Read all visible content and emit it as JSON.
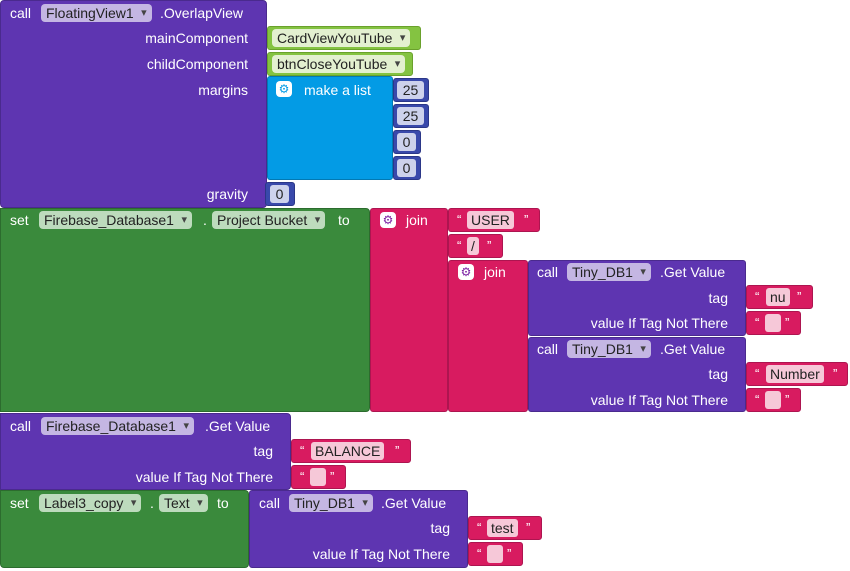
{
  "overlap": {
    "call_label": "call",
    "component": "FloatingView1",
    "method": ".OverlapView",
    "main_component_label": "mainComponent",
    "main_component_value": "CardViewYouTube",
    "child_component_label": "childComponent",
    "child_component_value": "btnCloseYouTube",
    "margins_label": "margins",
    "make_list_label": "make a list",
    "margin_values": [
      "25",
      "25",
      "0",
      "0"
    ],
    "gravity_label": "gravity",
    "gravity_value": "0"
  },
  "set_bucket": {
    "set_label": "set",
    "component": "Firebase_Database1",
    "dot": ".",
    "property": "Project Bucket",
    "to_label": "to",
    "join_label": "join",
    "str_user": "USER",
    "str_slash": "/",
    "inner_join_label": "join",
    "call1": {
      "call_label": "call",
      "component": "Tiny_DB1",
      "method": ".Get Value",
      "tag_label": "tag",
      "tag_value": "nu",
      "default_label": "value If Tag Not There",
      "default_value": ""
    },
    "call2": {
      "call_label": "call",
      "component": "Tiny_DB1",
      "method": ".Get Value",
      "tag_label": "tag",
      "tag_value": "Number",
      "default_label": "value If Tag Not There",
      "default_value": ""
    }
  },
  "firebase_get": {
    "call_label": "call",
    "component": "Firebase_Database1",
    "method": ".Get Value",
    "tag_label": "tag",
    "tag_value": "BALANCE",
    "default_label": "value If Tag Not There",
    "default_value": ""
  },
  "set_label": {
    "set_label": "set",
    "component": "Label3_copy",
    "dot": ".",
    "property": "Text",
    "to_label": "to",
    "call_label": "call",
    "db_component": "Tiny_DB1",
    "method": ".Get Value",
    "tag_label": "tag",
    "tag_value": "test",
    "default_label": "value If Tag Not There",
    "default_value": ""
  },
  "quote_open": "“",
  "quote_close": "”",
  "colors": {
    "procedure": "#5e35b1",
    "setter": "#3a8a3c",
    "text": "#d81b60",
    "component": "#84c341",
    "list": "#039be5",
    "math": "#3949ab"
  }
}
